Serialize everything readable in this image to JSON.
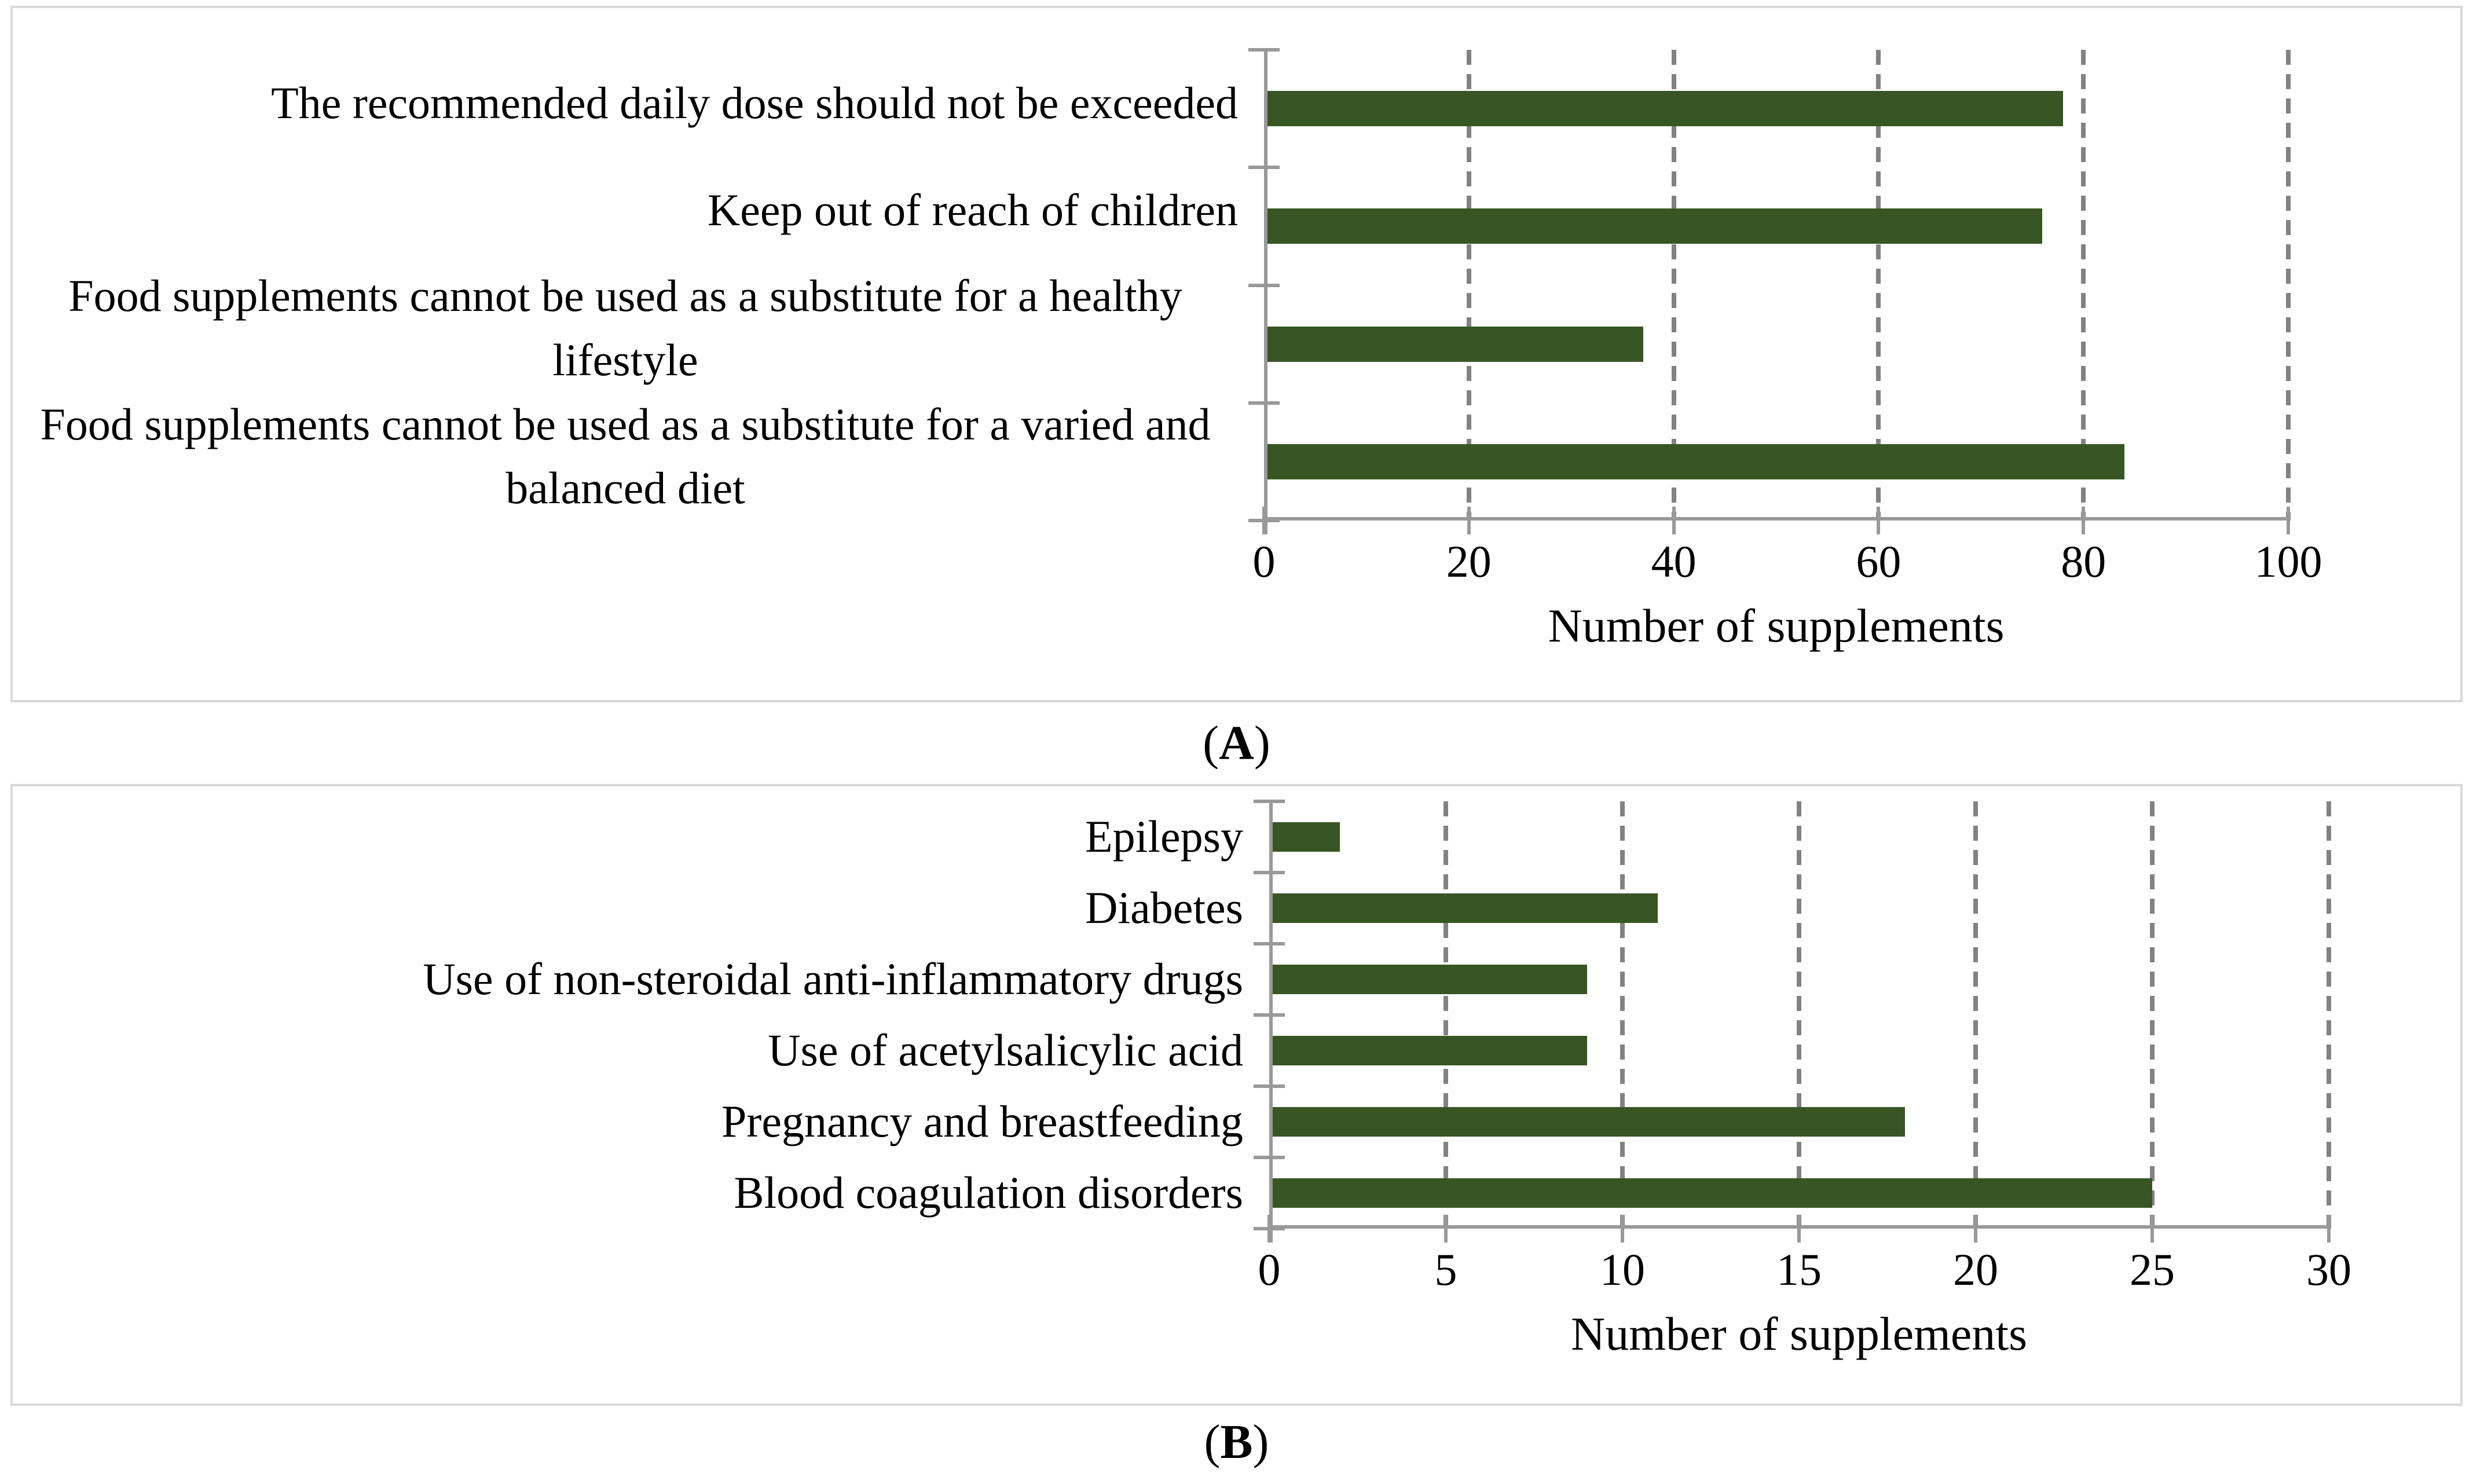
{
  "figure": {
    "panels": [
      {
        "caption": {
          "open": "(",
          "letter": "A",
          "close": ")"
        }
      },
      {
        "caption": {
          "open": "(",
          "letter": "B",
          "close": ")"
        }
      }
    ]
  },
  "chart_data": [
    {
      "type": "bar",
      "orientation": "horizontal",
      "title": "",
      "categories": [
        "The recommended daily dose should not be exceeded",
        "Keep out of reach of children",
        "Food supplements cannot be used as a substitute for a healthy lifestyle",
        "Food supplements cannot be used as a substitute for a varied and balanced diet"
      ],
      "values": [
        78,
        76,
        37,
        84
      ],
      "xlabel": "Number of supplements",
      "ylabel": "",
      "xlim": [
        0,
        100
      ],
      "xticks": [
        0,
        20,
        40,
        60,
        80,
        100
      ],
      "grid": "vertical-dashed",
      "legend": "none",
      "bar_color": "#375623"
    },
    {
      "type": "bar",
      "orientation": "horizontal",
      "title": "",
      "categories": [
        "Epilepsy",
        "Diabetes",
        "Use of non-steroidal anti-inflammatory drugs",
        "Use of acetylsalicylic acid",
        "Pregnancy and breastfeeding",
        "Blood coagulation disorders"
      ],
      "values": [
        2,
        11,
        9,
        9,
        18,
        25
      ],
      "xlabel": "Number of supplements",
      "ylabel": "",
      "xlim": [
        0,
        30
      ],
      "xticks": [
        0,
        5,
        10,
        15,
        20,
        25,
        30
      ],
      "grid": "vertical-dashed",
      "legend": "none",
      "bar_color": "#375623"
    }
  ],
  "colors": {
    "bar": "#375623",
    "axis_line": "#999999",
    "gridline": "#828282",
    "panel_border": "#d9d9d9",
    "text": "#000000"
  }
}
